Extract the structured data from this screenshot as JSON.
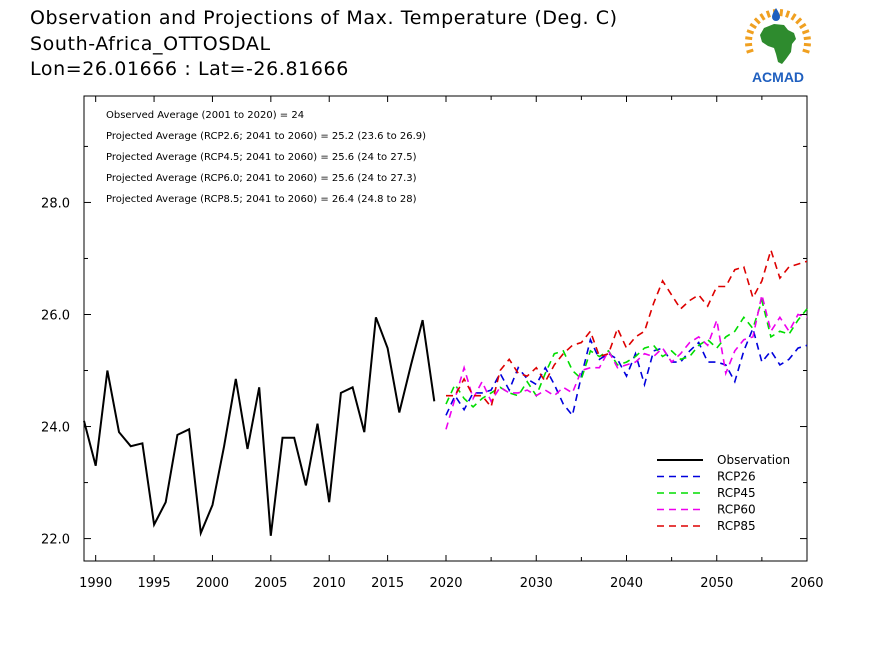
{
  "header": {
    "title": "Observation and Projections of Max. Temperature (Deg. C)",
    "location": "South-Africa_OTTOSDAL",
    "coords": "Lon=26.01666 : Lat=-26.81666"
  },
  "logo": {
    "text": "ACMAD",
    "icon": "africa-map-logo"
  },
  "colors": {
    "observation": "#000000",
    "rcp26": "#0000dd",
    "rcp45": "#00dd00",
    "rcp60": "#ee00ee",
    "rcp85": "#dd0000",
    "logo_green": "#2e8b2e",
    "logo_blue": "#1f5fbf",
    "logo_orange": "#f0a020"
  },
  "chart_data": {
    "type": "line",
    "title": "Observation and Projections of Max. Temperature (Deg. C)",
    "xlim": [
      1989,
      2060
    ],
    "ylim": [
      21.6,
      29.9
    ],
    "x_ticks": [
      1990,
      1995,
      2000,
      2005,
      2010,
      2015,
      2020,
      2030,
      2040,
      2050,
      2060
    ],
    "y_ticks": [
      22.0,
      24.0,
      26.0,
      28.0
    ],
    "y_tick_labels": [
      "22.0",
      "24.0",
      "26.0",
      "28.0"
    ],
    "x_tick_labels": [
      "1990",
      "1995",
      "2000",
      "2005",
      "2010",
      "2015",
      "2020",
      "2030",
      "2040",
      "2050",
      "2060"
    ],
    "grid": false,
    "legend_position": "bottom-right",
    "annotations": [
      "Observed Average (2001 to 2020) = 24",
      "Projected Average (RCP2.6; 2041 to 2060) = 25.2 (23.6 to 26.9)",
      "Projected Average (RCP4.5; 2041 to 2060) = 25.6 (24 to 27.5)",
      "Projected Average (RCP6.0; 2041 to 2060) = 25.6 (24 to 27.3)",
      "Projected Average (RCP8.5; 2041 to 2060) = 26.4 (24.8 to 28)"
    ],
    "series": [
      {
        "name": "Observation",
        "style": "solid",
        "x": [
          1989,
          1990,
          1991,
          1992,
          1993,
          1994,
          1995,
          1996,
          1997,
          1998,
          1999,
          2000,
          2001,
          2002,
          2003,
          2004,
          2005,
          2006,
          2007,
          2008,
          2009,
          2010,
          2011,
          2012,
          2013,
          2014,
          2015,
          2016,
          2017,
          2018,
          2019
        ],
        "values": [
          24.1,
          23.3,
          25.0,
          23.9,
          23.65,
          23.7,
          22.25,
          22.65,
          23.85,
          23.95,
          22.1,
          22.6,
          23.65,
          24.85,
          23.6,
          24.7,
          22.05,
          23.8,
          23.8,
          22.95,
          24.05,
          22.65,
          24.6,
          24.7,
          23.9,
          25.95,
          25.4,
          24.25,
          25.1,
          25.9,
          24.45
        ]
      },
      {
        "name": "RCP26",
        "style": "dashed",
        "x": [
          2020,
          2021,
          2022,
          2023,
          2024,
          2025,
          2026,
          2027,
          2028,
          2029,
          2030,
          2031,
          2032,
          2033,
          2034,
          2035,
          2036,
          2037,
          2038,
          2039,
          2040,
          2041,
          2042,
          2043,
          2044,
          2045,
          2046,
          2047,
          2048,
          2049,
          2050,
          2051,
          2052,
          2053,
          2054,
          2055,
          2056,
          2057,
          2058,
          2059,
          2060
        ],
        "values": [
          24.2,
          24.55,
          24.3,
          24.6,
          24.6,
          24.65,
          24.95,
          24.65,
          25.05,
          24.85,
          24.75,
          25.05,
          24.75,
          24.4,
          24.2,
          24.9,
          25.55,
          25.2,
          25.3,
          25.2,
          24.9,
          25.3,
          24.75,
          25.35,
          25.4,
          25.15,
          25.15,
          25.35,
          25.5,
          25.15,
          25.15,
          25.1,
          24.8,
          25.35,
          25.75,
          25.15,
          25.35,
          25.1,
          25.2,
          25.4,
          25.45
        ]
      },
      {
        "name": "RCP45",
        "style": "dashed",
        "x": [
          2020,
          2021,
          2022,
          2023,
          2024,
          2025,
          2026,
          2027,
          2028,
          2029,
          2030,
          2031,
          2032,
          2033,
          2034,
          2035,
          2036,
          2037,
          2038,
          2039,
          2040,
          2041,
          2042,
          2043,
          2044,
          2045,
          2046,
          2047,
          2048,
          2049,
          2050,
          2051,
          2052,
          2053,
          2054,
          2055,
          2056,
          2057,
          2058,
          2059,
          2060
        ],
        "values": [
          24.4,
          24.75,
          24.5,
          24.35,
          24.5,
          24.6,
          24.7,
          24.6,
          24.55,
          24.8,
          24.55,
          24.95,
          25.3,
          25.35,
          25.0,
          24.85,
          25.35,
          25.25,
          25.35,
          25.1,
          25.15,
          25.25,
          25.4,
          25.45,
          25.25,
          25.35,
          25.2,
          25.25,
          25.45,
          25.55,
          25.4,
          25.6,
          25.7,
          25.95,
          25.75,
          26.25,
          25.6,
          25.7,
          25.65,
          25.9,
          26.1
        ]
      },
      {
        "name": "RCP60",
        "style": "dashed",
        "x": [
          2020,
          2021,
          2022,
          2023,
          2024,
          2025,
          2026,
          2027,
          2028,
          2029,
          2030,
          2031,
          2032,
          2033,
          2034,
          2035,
          2036,
          2037,
          2038,
          2039,
          2040,
          2041,
          2042,
          2043,
          2044,
          2045,
          2046,
          2047,
          2048,
          2049,
          2050,
          2051,
          2052,
          2053,
          2054,
          2055,
          2056,
          2057,
          2058,
          2059,
          2060
        ],
        "values": [
          23.95,
          24.5,
          25.05,
          24.5,
          24.8,
          24.45,
          24.7,
          24.6,
          24.6,
          24.65,
          24.55,
          24.65,
          24.55,
          24.7,
          24.6,
          25.0,
          25.05,
          25.05,
          25.35,
          25.05,
          25.1,
          25.15,
          25.3,
          25.25,
          25.4,
          25.15,
          25.3,
          25.5,
          25.6,
          25.45,
          25.9,
          24.95,
          25.35,
          25.55,
          25.6,
          26.35,
          25.7,
          25.95,
          25.7,
          26.0,
          25.95
        ]
      },
      {
        "name": "RCP85",
        "style": "dashed",
        "x": [
          2020,
          2021,
          2022,
          2023,
          2024,
          2025,
          2026,
          2027,
          2028,
          2029,
          2030,
          2031,
          2032,
          2033,
          2034,
          2035,
          2036,
          2037,
          2038,
          2039,
          2040,
          2041,
          2042,
          2043,
          2044,
          2045,
          2046,
          2047,
          2048,
          2049,
          2050,
          2051,
          2052,
          2053,
          2054,
          2055,
          2056,
          2057,
          2058,
          2059,
          2060
        ],
        "values": [
          24.55,
          24.55,
          24.85,
          24.55,
          24.55,
          24.35,
          25.0,
          25.2,
          24.95,
          24.9,
          25.05,
          24.8,
          25.1,
          25.3,
          25.45,
          25.5,
          25.7,
          25.25,
          25.3,
          25.75,
          25.4,
          25.6,
          25.7,
          26.2,
          26.6,
          26.35,
          26.1,
          26.25,
          26.35,
          26.15,
          26.5,
          26.5,
          26.8,
          26.85,
          26.3,
          26.6,
          27.15,
          26.65,
          26.85,
          26.9,
          26.95
        ]
      }
    ]
  }
}
